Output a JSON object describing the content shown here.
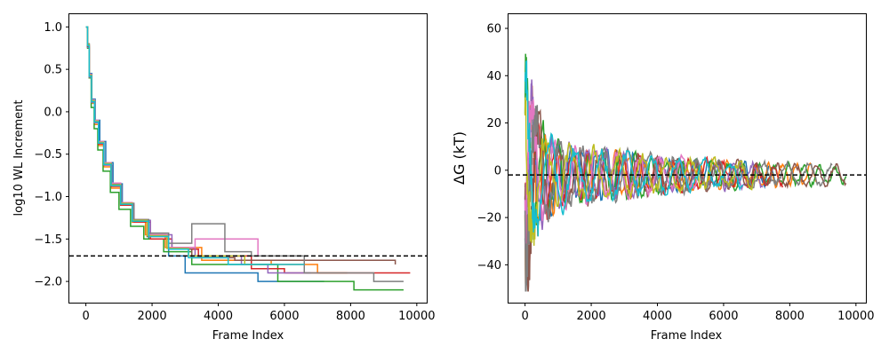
{
  "chart_data": [
    {
      "type": "line",
      "xlabel": "Frame Index",
      "ylabel": "log10 WL Increment",
      "xlim": [
        -500,
        10300
      ],
      "ylim": [
        -2.25,
        1.15
      ],
      "xticks": [
        0,
        2000,
        4000,
        6000,
        8000,
        10000
      ],
      "xtick_labels": [
        "0",
        "2000",
        "4000",
        "6000",
        "8000",
        "10000"
      ],
      "yticks": [
        -2.0,
        -1.5,
        -1.0,
        -0.5,
        0.0,
        0.5,
        1.0
      ],
      "ytick_labels": [
        "−2.0",
        "−1.5",
        "−1.0",
        "−0.5",
        "0.0",
        "0.5",
        "1.0"
      ],
      "grid": false,
      "reference_line": {
        "axis": "y",
        "value": -1.7,
        "style": "dashed",
        "color": "#000000"
      },
      "series": [
        {
          "color": "#1f77b4",
          "x": [
            0,
            50,
            100,
            180,
            280,
            420,
            600,
            820,
            1100,
            1450,
            1900,
            2500,
            3000,
            5200
          ],
          "y": [
            1.0,
            0.8,
            0.45,
            0.15,
            -0.1,
            -0.35,
            -0.6,
            -0.85,
            -1.1,
            -1.3,
            -1.5,
            -1.7,
            -1.9,
            -2.0
          ],
          "end": 7200
        },
        {
          "color": "#ff7f0e",
          "x": [
            0,
            50,
            100,
            170,
            260,
            380,
            540,
            760,
            1050,
            1400,
            1800,
            2400,
            3500,
            5600,
            7000
          ],
          "y": [
            1.0,
            0.8,
            0.4,
            0.1,
            -0.15,
            -0.4,
            -0.65,
            -0.9,
            -1.1,
            -1.3,
            -1.45,
            -1.6,
            -1.75,
            -1.8,
            -1.9
          ],
          "end": 7900
        },
        {
          "color": "#2ca02c",
          "x": [
            0,
            50,
            100,
            160,
            250,
            360,
            520,
            740,
            1000,
            1350,
            1750,
            2350,
            3200,
            5800,
            8100
          ],
          "y": [
            1.0,
            0.75,
            0.4,
            0.05,
            -0.2,
            -0.45,
            -0.7,
            -0.95,
            -1.15,
            -1.35,
            -1.5,
            -1.65,
            -1.8,
            -2.0,
            -2.1
          ],
          "end": 9600
        },
        {
          "color": "#d62728",
          "x": [
            0,
            50,
            100,
            170,
            260,
            380,
            540,
            760,
            1050,
            1450,
            1950,
            2600,
            3400,
            5000,
            6000
          ],
          "y": [
            1.0,
            0.78,
            0.42,
            0.12,
            -0.12,
            -0.38,
            -0.62,
            -0.88,
            -1.1,
            -1.3,
            -1.5,
            -1.62,
            -1.7,
            -1.85,
            -1.9
          ],
          "end": 9800
        },
        {
          "color": "#9467bd",
          "x": [
            0,
            50,
            100,
            170,
            260,
            380,
            550,
            780,
            1080,
            1450,
            1950,
            2600,
            3300,
            4700,
            5500
          ],
          "y": [
            1.0,
            0.76,
            0.41,
            0.11,
            -0.13,
            -0.37,
            -0.63,
            -0.87,
            -1.08,
            -1.28,
            -1.45,
            -1.6,
            -1.7,
            -1.8,
            -1.9
          ],
          "end": 6800
        },
        {
          "color": "#8c564b",
          "x": [
            0,
            50,
            100,
            170,
            260,
            380,
            540,
            770,
            1060,
            1400,
            1850,
            2500,
            3200,
            4500,
            6200,
            9350
          ],
          "y": [
            1.0,
            0.77,
            0.43,
            0.13,
            -0.11,
            -0.36,
            -0.61,
            -0.86,
            -1.09,
            -1.29,
            -1.47,
            -1.62,
            -1.72,
            -1.75,
            -1.75,
            -1.8
          ],
          "end": 9350
        },
        {
          "color": "#e377c2",
          "x": [
            0,
            50,
            100,
            170,
            260,
            380,
            540,
            760,
            1050,
            1400,
            1850,
            2450,
            3300,
            5200
          ],
          "y": [
            1.0,
            0.79,
            0.44,
            0.14,
            -0.1,
            -0.35,
            -0.6,
            -0.84,
            -1.07,
            -1.27,
            -1.45,
            -1.6,
            -1.5,
            -1.7
          ],
          "end": 5200
        },
        {
          "color": "#7f7f7f",
          "x": [
            0,
            50,
            100,
            170,
            260,
            380,
            540,
            770,
            1070,
            1450,
            1900,
            2500,
            3200,
            4200,
            5000,
            6600,
            8700
          ],
          "y": [
            1.0,
            0.8,
            0.43,
            0.12,
            -0.12,
            -0.37,
            -0.62,
            -0.87,
            -1.08,
            -1.27,
            -1.43,
            -1.55,
            -1.32,
            -1.65,
            -1.7,
            -1.9,
            -2.0
          ],
          "end": 9600
        },
        {
          "color": "#bcbd22",
          "x": [
            0,
            50,
            100,
            170,
            260,
            380,
            540,
            760,
            1050,
            1400,
            1850,
            2450,
            3100,
            4800
          ],
          "y": [
            1.0,
            0.79,
            0.43,
            0.13,
            -0.11,
            -0.36,
            -0.61,
            -0.86,
            -1.08,
            -1.28,
            -1.46,
            -1.61,
            -1.7,
            -1.8
          ],
          "end": 5800
        },
        {
          "color": "#17becf",
          "x": [
            0,
            50,
            100,
            170,
            260,
            380,
            540,
            760,
            1050,
            1400,
            1900,
            2500,
            3100,
            4300
          ],
          "y": [
            1.0,
            0.78,
            0.42,
            0.12,
            -0.12,
            -0.37,
            -0.62,
            -0.87,
            -1.09,
            -1.29,
            -1.47,
            -1.62,
            -1.72,
            -1.8
          ],
          "end": 6600
        }
      ]
    },
    {
      "type": "line",
      "xlabel": "Frame Index",
      "ylabel": "ΔG (kT)",
      "xlim": [
        -500,
        10300
      ],
      "ylim": [
        -56,
        66
      ],
      "xticks": [
        0,
        2000,
        4000,
        6000,
        8000,
        10000
      ],
      "xtick_labels": [
        "0",
        "2000",
        "4000",
        "6000",
        "8000",
        "10000"
      ],
      "yticks": [
        -40,
        -20,
        0,
        20,
        40,
        60
      ],
      "ytick_labels": [
        "−40",
        "−20",
        "0",
        "20",
        "40",
        "60"
      ],
      "grid": false,
      "reference_line": {
        "axis": "y",
        "value": -2,
        "style": "dashed",
        "color": "#000000"
      },
      "series": [
        {
          "color": "#1f77b4",
          "end": 7600
        },
        {
          "color": "#ff7f0e",
          "end": 8800
        },
        {
          "color": "#2ca02c",
          "end": 9700
        },
        {
          "color": "#d62728",
          "end": 7800
        },
        {
          "color": "#9467bd",
          "end": 7200
        },
        {
          "color": "#8c564b",
          "end": 9700
        },
        {
          "color": "#e377c2",
          "end": 5200
        },
        {
          "color": "#7f7f7f",
          "end": 9300
        },
        {
          "color": "#bcbd22",
          "end": 7000
        },
        {
          "color": "#17becf",
          "end": 6600
        }
      ],
      "envelope": {
        "description_values": "oscillation amplitude decays with frame index",
        "amplitude_at": [
          [
            0,
            50
          ],
          [
            300,
            25
          ],
          [
            1000,
            14
          ],
          [
            2000,
            11
          ],
          [
            4000,
            8
          ],
          [
            6000,
            6
          ],
          [
            8000,
            5
          ],
          [
            10000,
            4
          ]
        ]
      }
    }
  ]
}
